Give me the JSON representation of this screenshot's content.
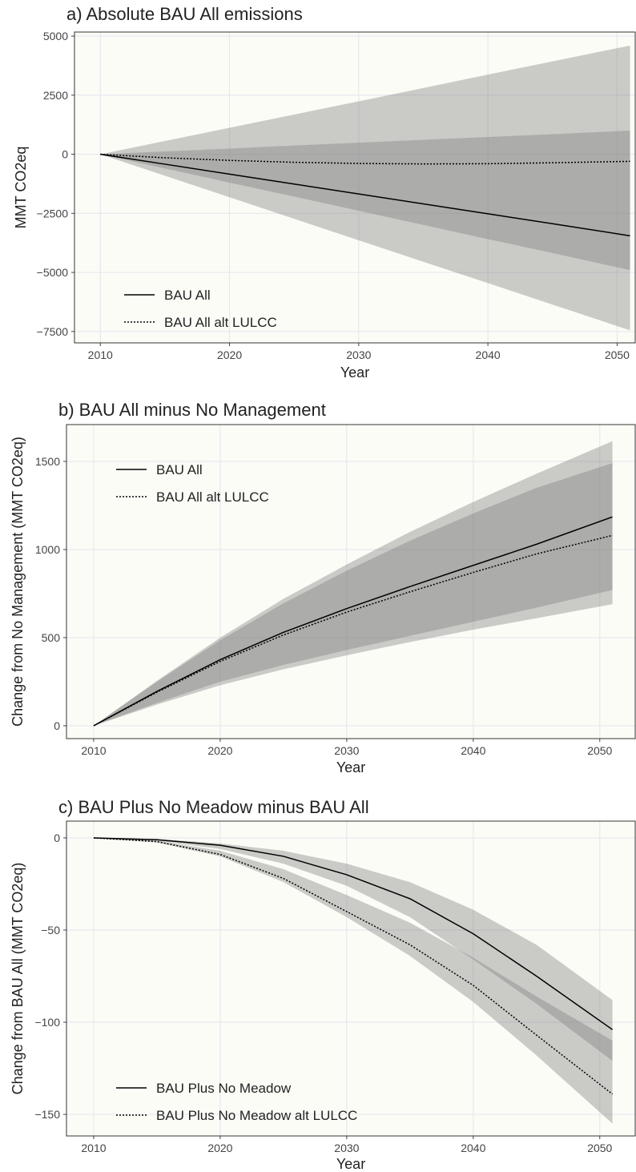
{
  "chart_data": [
    {
      "type": "line",
      "title": "a) Absolute BAU All emissions",
      "xlabel": "Year",
      "ylabel": "MMT CO2eq",
      "x": [
        2010,
        2015,
        2020,
        2025,
        2030,
        2035,
        2040,
        2045,
        2051
      ],
      "xlim": [
        2008,
        2051.4
      ],
      "xticks": [
        2010,
        2020,
        2030,
        2040,
        2050
      ],
      "ylim": [
        -7980,
        5170
      ],
      "yticks": [
        {
          "value": -7500,
          "label": "−7500"
        },
        {
          "value": -5000,
          "label": "−5000"
        },
        {
          "value": -2500,
          "label": "−2500"
        },
        0,
        2500,
        5000
      ],
      "grid": true,
      "legend": "bottom-left",
      "fill": "#808080",
      "fill_opacity": 0.4,
      "series": [
        {
          "name": "BAU All",
          "color": "#000000",
          "linestyle": "solid",
          "values": [
            0,
            -420,
            -840,
            -1260,
            -1680,
            -2100,
            -2520,
            -2940,
            -3450
          ],
          "lower": [
            0,
            -910,
            -1820,
            -2730,
            -3640,
            -4550,
            -5450,
            -6360,
            -7450
          ],
          "upper": [
            0,
            120,
            240,
            370,
            490,
            610,
            730,
            850,
            1000
          ]
        },
        {
          "name": "BAU All alt LULCC",
          "color": "#000000",
          "linestyle": "dotted",
          "values": [
            0,
            -150,
            -260,
            -340,
            -390,
            -410,
            -400,
            -360,
            -300
          ],
          "lower": [
            0,
            -600,
            -1200,
            -1790,
            -2390,
            -2990,
            -3590,
            -4180,
            -4900
          ],
          "upper": [
            0,
            560,
            1120,
            1680,
            2240,
            2800,
            3370,
            3930,
            4600
          ]
        }
      ]
    },
    {
      "type": "line",
      "title": "b) BAU All minus No Management",
      "xlabel": "Year",
      "ylabel": "Change from No Management (MMT CO2eq)",
      "x": [
        2010,
        2015,
        2020,
        2025,
        2030,
        2035,
        2040,
        2045,
        2051
      ],
      "xlim": [
        2007.85,
        2052.8
      ],
      "xticks": [
        2010,
        2020,
        2030,
        2040,
        2050
      ],
      "ylim": [
        -73,
        1709
      ],
      "yticks": [
        0,
        500,
        1000,
        1500
      ],
      "grid": true,
      "legend": "top-left",
      "fill": "#808080",
      "fill_opacity": 0.4,
      "series": [
        {
          "name": "BAU All",
          "color": "#000000",
          "linestyle": "solid",
          "values": [
            0,
            195,
            375,
            530,
            665,
            790,
            910,
            1030,
            1185
          ],
          "lower": [
            0,
            130,
            250,
            345,
            430,
            510,
            590,
            670,
            770
          ],
          "upper": [
            0,
            255,
            500,
            720,
            915,
            1100,
            1270,
            1430,
            1615
          ]
        },
        {
          "name": "BAU All alt LULCC",
          "color": "#000000",
          "linestyle": "dotted",
          "values": [
            0,
            190,
            365,
            515,
            645,
            760,
            870,
            975,
            1080
          ],
          "lower": [
            0,
            120,
            230,
            320,
            400,
            475,
            545,
            610,
            690
          ],
          "upper": [
            0,
            250,
            485,
            695,
            880,
            1050,
            1205,
            1350,
            1490
          ]
        }
      ]
    },
    {
      "type": "line",
      "title": "c) BAU Plus No Meadow minus BAU All",
      "xlabel": "Year",
      "ylabel": "Change from BAU All (MMT CO2eq)",
      "x": [
        2010,
        2015,
        2020,
        2025,
        2030,
        2035,
        2040,
        2045,
        2051
      ],
      "xlim": [
        2007.85,
        2052.8
      ],
      "xticks": [
        2010,
        2020,
        2030,
        2040,
        2050
      ],
      "ylim": [
        -161.7,
        9.1
      ],
      "yticks": [
        {
          "value": -150,
          "label": "−150"
        },
        {
          "value": -100,
          "label": "−100"
        },
        {
          "value": -50,
          "label": "−50"
        },
        0
      ],
      "grid": true,
      "legend": "bottom-left",
      "fill": "#808080",
      "fill_opacity": 0.4,
      "series": [
        {
          "name": "BAU Plus No Meadow",
          "color": "#000000",
          "linestyle": "solid",
          "values": [
            0,
            -1,
            -4,
            -10,
            -20,
            -33,
            -52,
            -75,
            -104
          ],
          "lower": [
            0,
            -1.5,
            -6,
            -14,
            -26,
            -43,
            -66,
            -90,
            -121
          ],
          "upper": [
            0,
            -0.5,
            -3,
            -7,
            -14,
            -24,
            -39,
            -58,
            -88
          ]
        },
        {
          "name": "BAU Plus No Meadow alt LULCC",
          "color": "#000000",
          "linestyle": "dotted",
          "values": [
            0,
            -2,
            -9,
            -22,
            -40,
            -58,
            -80,
            -107,
            -139
          ],
          "lower": [
            0,
            -2.5,
            -10,
            -24,
            -43,
            -64,
            -89,
            -118,
            -155
          ],
          "upper": [
            0,
            -1.5,
            -7,
            -17,
            -31,
            -46,
            -65,
            -86,
            -110
          ]
        }
      ]
    }
  ]
}
